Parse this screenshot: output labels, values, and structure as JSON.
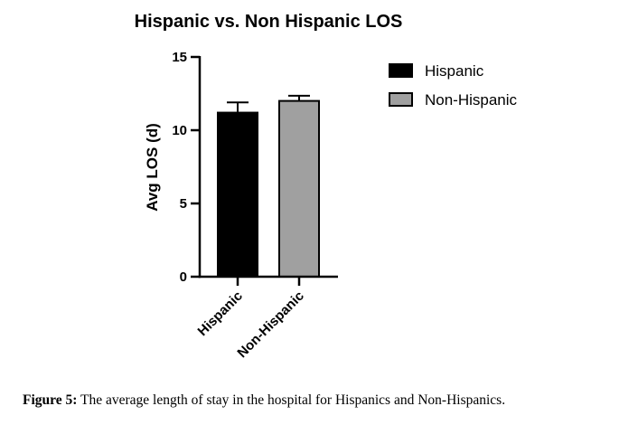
{
  "chart_data": {
    "type": "bar",
    "title": "Hispanic vs. Non Hispanic LOS",
    "xlabel": "",
    "ylabel": "Avg LOS (d)",
    "categories": [
      "Hispanic",
      "Non-Hispanic"
    ],
    "values": [
      11.2,
      12.0
    ],
    "errors": [
      0.7,
      0.35
    ],
    "ylim": [
      0,
      15
    ],
    "yticks": [
      0,
      5,
      10,
      15
    ],
    "grid": false,
    "legend_position": "top-right",
    "series": [
      {
        "name": "Hispanic",
        "color": "#000000"
      },
      {
        "name": "Non-Hispanic",
        "color": "#a0a0a0"
      }
    ]
  },
  "caption": {
    "label": "Figure 5:",
    "text": "The average length of stay in the hospital for Hispanics and Non-Hispanics."
  }
}
